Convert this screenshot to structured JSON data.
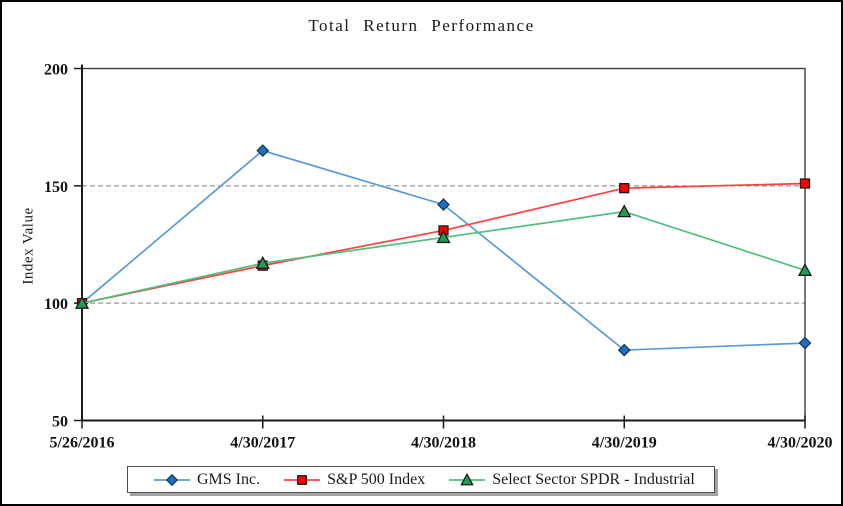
{
  "window": {
    "background_color": "#ffffff",
    "border_color": "#000000"
  },
  "chart_data": {
    "type": "line",
    "title": "Total Return Performance",
    "xlabel": "",
    "ylabel": "Index Value",
    "categories": [
      "5/26/2016",
      "4/30/2017",
      "4/30/2018",
      "4/30/2019",
      "4/30/2020"
    ],
    "series": [
      {
        "name": "GMS Inc.",
        "marker": "diamond",
        "line_color": "#5b9bd5",
        "marker_color": "#1f6fc0",
        "marker_stroke": "#17375e",
        "values": [
          100,
          165,
          142,
          80,
          83
        ]
      },
      {
        "name": "S&P 500 Index",
        "marker": "square",
        "line_color": "#ff4040",
        "marker_color": "#ff0000",
        "marker_stroke": "#1a1a1a",
        "values": [
          100,
          116,
          131,
          149,
          151
        ]
      },
      {
        "name": "Select Sector SPDR - Industrial",
        "marker": "triangle",
        "line_color": "#52be80",
        "marker_color": "#1e9e50",
        "marker_stroke": "#1a1a1a",
        "values": [
          100,
          117,
          128,
          139,
          114
        ]
      }
    ],
    "ylim": [
      50,
      200
    ],
    "yticks": [
      50,
      100,
      150,
      200
    ],
    "gridlines_at": [
      100,
      150
    ],
    "grid_on": true,
    "grid_color": "#7f7f7f",
    "axis_color": "#3d3d3d",
    "tick_color": "#1a1a1a",
    "legend_position": "bottom"
  }
}
